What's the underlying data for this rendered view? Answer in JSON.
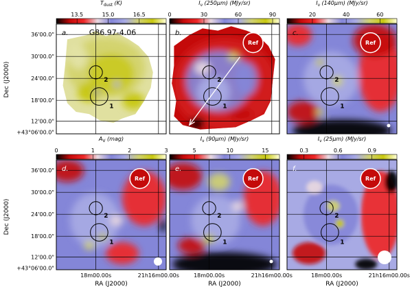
{
  "figure": {
    "y_axis_label": "Dec (J2000)",
    "x_axis_label": "RA (J2000)",
    "ref_label": "Ref",
    "source_name": "G86.97-4.06"
  },
  "colors": {
    "cmap_stops": [
      "#000000",
      "#c40a0a",
      "#ee2828",
      "#e8d8e0",
      "#8486d8",
      "#a8aae4",
      "#cfd070",
      "#c8c810",
      "#ffffd8"
    ],
    "clump_circle": "#000000",
    "ref_circle": "#ffffff",
    "frame": "#000000"
  },
  "chart_data": [
    {
      "type": "heatmap",
      "panel": "a.",
      "quantity": "T_dust (K)",
      "colorbar_title": "T",
      "colorbar_title_sub": "dust",
      "colorbar_title_unit": "(K)",
      "colorbar_range": [
        12.5,
        17.8
      ],
      "colorbar_ticks": [
        {
          "value": 13.5,
          "label": "13.5"
        },
        {
          "value": 15.0,
          "label": "15.0"
        },
        {
          "value": 16.5,
          "label": "16.5"
        }
      ],
      "clumps": [
        {
          "label": "2"
        },
        {
          "label": "1"
        }
      ],
      "has_ref": false,
      "has_direction_arrow": false
    },
    {
      "type": "heatmap",
      "panel": "b.",
      "quantity": "I_nu(250um) (MJy/sr)",
      "colorbar_title": "I",
      "colorbar_title_sub": "ν",
      "colorbar_title_unit": "(250μm)  (MJy/sr)",
      "colorbar_range": [
        0,
        96
      ],
      "colorbar_ticks": [
        {
          "value": 0,
          "label": "0"
        },
        {
          "value": 30,
          "label": "30"
        },
        {
          "value": 60,
          "label": "60"
        },
        {
          "value": 90,
          "label": "90"
        }
      ],
      "clumps": [
        {
          "label": "2"
        },
        {
          "label": "1"
        }
      ],
      "has_ref": true,
      "has_direction_arrow": true
    },
    {
      "type": "heatmap",
      "panel": "c.",
      "quantity": "I_nu(140um) (MJy/sr)",
      "colorbar_title": "I",
      "colorbar_title_sub": "ν",
      "colorbar_title_unit": "(140μm)  (MJy/sr)",
      "colorbar_range": [
        5,
        70
      ],
      "colorbar_ticks": [
        {
          "value": 20,
          "label": "20"
        },
        {
          "value": 40,
          "label": "40"
        },
        {
          "value": 60,
          "label": "60"
        }
      ],
      "clumps": [
        {
          "label": "2"
        },
        {
          "label": "1"
        }
      ],
      "has_ref": true,
      "has_direction_arrow": false
    },
    {
      "type": "heatmap",
      "panel": "d.",
      "quantity": "A_V (mag)",
      "colorbar_title": "A",
      "colorbar_title_sub": "V",
      "colorbar_title_unit": "(mag)",
      "colorbar_range": [
        0,
        3
      ],
      "colorbar_ticks": [
        {
          "value": 0,
          "label": "0"
        },
        {
          "value": 1,
          "label": "1"
        },
        {
          "value": 2,
          "label": "2"
        },
        {
          "value": 3,
          "label": "3"
        }
      ],
      "clumps": [
        {
          "label": "2"
        },
        {
          "label": "1"
        }
      ],
      "has_ref": true,
      "has_direction_arrow": false
    },
    {
      "type": "heatmap",
      "panel": "e.",
      "quantity": "I_nu(90um) (MJy/sr)",
      "colorbar_title": "I",
      "colorbar_title_sub": "ν",
      "colorbar_title_unit": "(90μm)  (MJy/sr)",
      "colorbar_range": [
        1.5,
        17
      ],
      "colorbar_ticks": [
        {
          "value": 5,
          "label": "5"
        },
        {
          "value": 10,
          "label": "10"
        },
        {
          "value": 15,
          "label": "15"
        }
      ],
      "clumps": [
        {
          "label": "2"
        },
        {
          "label": "1"
        }
      ],
      "has_ref": true,
      "has_direction_arrow": false
    },
    {
      "type": "heatmap",
      "panel": "f.",
      "quantity": "I_nu(25um) (MJy/sr)",
      "colorbar_title": "I",
      "colorbar_title_sub": "ν",
      "colorbar_title_unit": "(25μm)  (MJy/sr)",
      "colorbar_range": [
        0.15,
        1.12
      ],
      "colorbar_ticks": [
        {
          "value": 0.3,
          "label": "0.3"
        },
        {
          "value": 0.6,
          "label": "0.6"
        },
        {
          "value": 0.9,
          "label": "0.9"
        }
      ],
      "clumps": [
        {
          "label": "2"
        },
        {
          "label": "1"
        }
      ],
      "has_ref": true,
      "has_direction_arrow": false
    }
  ],
  "axes": {
    "dec_ticks": [
      "36'00.0\"",
      "30'00.0\"",
      "24'00.0\"",
      "18'00.0\"",
      "12'00.0\"",
      "+43°06'00.0\""
    ],
    "ra_ticks": [
      "18m00.00s",
      "21h16m00.00s"
    ]
  }
}
